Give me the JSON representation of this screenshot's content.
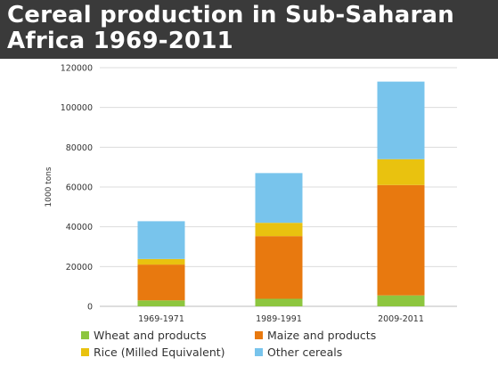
{
  "header": {
    "title_line1": "Cereal production in Sub-Saharan",
    "title_line2": "Africa 1969-2011"
  },
  "chart_data": {
    "type": "bar",
    "stacked": true,
    "title": "Cereal production in Sub-Saharan Africa 1969-2011",
    "xlabel": "",
    "ylabel": "1000 tons",
    "ylim": [
      0,
      120000
    ],
    "yticks": [
      0,
      20000,
      40000,
      60000,
      80000,
      100000,
      120000
    ],
    "grid": true,
    "legend_position": "bottom",
    "categories": [
      "1969-1971",
      "1989-1991",
      "2009-2011"
    ],
    "series": [
      {
        "name": "Wheat and products",
        "color": "#8dc63f",
        "values": [
          3000,
          3800,
          5500
        ]
      },
      {
        "name": "Maize and products",
        "color": "#e8790f",
        "values": [
          18000,
          31500,
          55500
        ]
      },
      {
        "name": "Rice (Milled Equivalent)",
        "color": "#e9c20f",
        "values": [
          2800,
          6700,
          13000
        ]
      },
      {
        "name": "Other cereals",
        "color": "#78c4ec",
        "values": [
          19000,
          25000,
          39000
        ]
      }
    ]
  }
}
